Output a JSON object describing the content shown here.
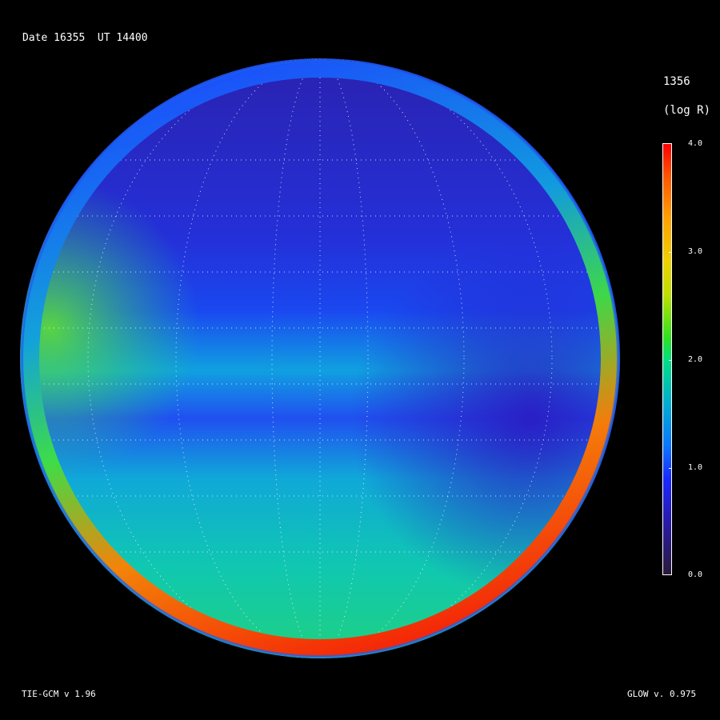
{
  "header": {
    "date_label": "Date 16355  UT 14400"
  },
  "colorbar": {
    "title": "1356",
    "units": "(log R)",
    "ticks": [
      "4.0",
      "3.0",
      "2.0",
      "1.0",
      "0.0"
    ],
    "range": [
      0.0,
      4.0
    ],
    "colors": {
      "low": "#2a1a3a",
      "mid": "#00e080",
      "high": "#ff0000"
    }
  },
  "footer": {
    "left": "TIE-GCM v 1.96",
    "right": "GLOW v. 0.975"
  }
}
